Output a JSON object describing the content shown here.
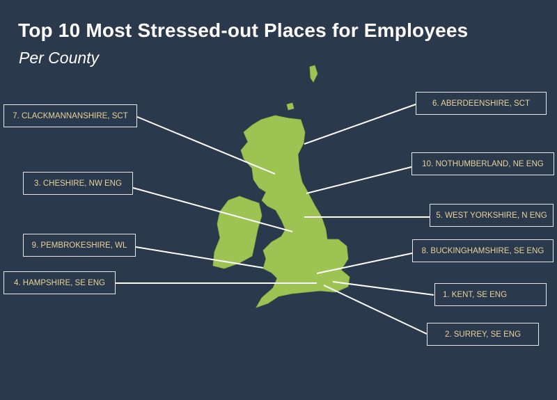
{
  "title": "Top 10 Most Stressed-out Places for Employees",
  "subtitle": "Per County",
  "colors": {
    "background": "#2b394c",
    "land": "#9dc452",
    "label_text": "#e6d39a",
    "line": "#ffffff"
  },
  "labels": [
    {
      "rank": 7,
      "text": "7. CLACKMANNANSHIRE, SCT"
    },
    {
      "rank": 6,
      "text": "6. ABERDEENSHIRE, SCT"
    },
    {
      "rank": 3,
      "text": "3.  CHESHIRE, NW ENG"
    },
    {
      "rank": 10,
      "text": "10. NOTHUMBERLAND, NE ENG"
    },
    {
      "rank": 5,
      "text": "5. WEST YORKSHIRE, N ENG"
    },
    {
      "rank": 9,
      "text": "9.  PEMBROKESHIRE, WL"
    },
    {
      "rank": 8,
      "text": "8. BUCKINGHAMSHIRE, SE ENG"
    },
    {
      "rank": 4,
      "text": "4. HAMPSHIRE, SE ENG"
    },
    {
      "rank": 1,
      "text": "1. KENT, SE ENG"
    },
    {
      "rank": 2,
      "text": "2.  SURREY, SE ENG"
    }
  ]
}
